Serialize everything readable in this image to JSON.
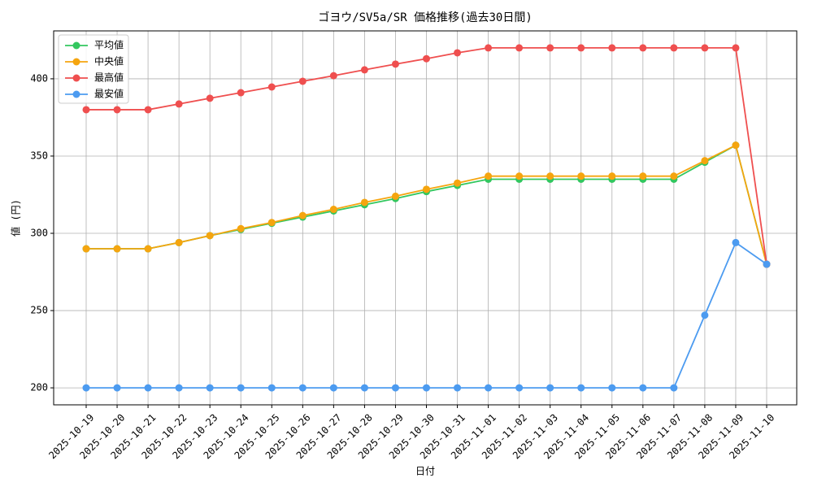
{
  "chart_data": {
    "type": "line",
    "title": "ゴヨウ/SV5a/SR 価格推移(過去30日間)",
    "x_label": "日付",
    "y_label": "値 (円)",
    "categories": [
      "2025-10-19",
      "2025-10-20",
      "2025-10-21",
      "2025-10-22",
      "2025-10-23",
      "2025-10-24",
      "2025-10-25",
      "2025-10-26",
      "2025-10-27",
      "2025-10-28",
      "2025-10-29",
      "2025-10-30",
      "2025-10-31",
      "2025-11-01",
      "2025-11-02",
      "2025-11-03",
      "2025-11-04",
      "2025-11-05",
      "2025-11-06",
      "2025-11-07",
      "2025-11-08",
      "2025-11-09",
      "2025-11-10"
    ],
    "series": [
      {
        "name": "平均値",
        "color": "#33c75f",
        "values": [
          290,
          290,
          290,
          294,
          298.5,
          302.5,
          306.5,
          310.5,
          314.5,
          318.5,
          322.5,
          327,
          331,
          335,
          335,
          335,
          335,
          335,
          335,
          335,
          346,
          357,
          280
        ]
      },
      {
        "name": "中央値",
        "color": "#f5a50f",
        "values": [
          290,
          290,
          290,
          294,
          298.5,
          303,
          307,
          311.5,
          315.5,
          320,
          324,
          328.5,
          332.5,
          337,
          337,
          337,
          337,
          337,
          337,
          337,
          347,
          357,
          280
        ]
      },
      {
        "name": "最高値",
        "color": "#ef4f4f",
        "values": [
          380,
          380,
          380,
          383.7,
          387.4,
          391,
          394.7,
          398.4,
          402,
          405.8,
          409.5,
          413,
          416.8,
          420,
          420,
          420,
          420,
          420,
          420,
          420,
          420,
          420,
          280
        ]
      },
      {
        "name": "最安値",
        "color": "#4c9bf0",
        "values": [
          200,
          200,
          200,
          200,
          200,
          200,
          200,
          200,
          200,
          200,
          200,
          200,
          200,
          200,
          200,
          200,
          200,
          200,
          200,
          200,
          247,
          294,
          280
        ]
      }
    ],
    "ylim": [
      189,
      431
    ],
    "yticks": [
      200,
      250,
      300,
      350,
      400
    ],
    "grid": true,
    "legend": "upper-left"
  }
}
